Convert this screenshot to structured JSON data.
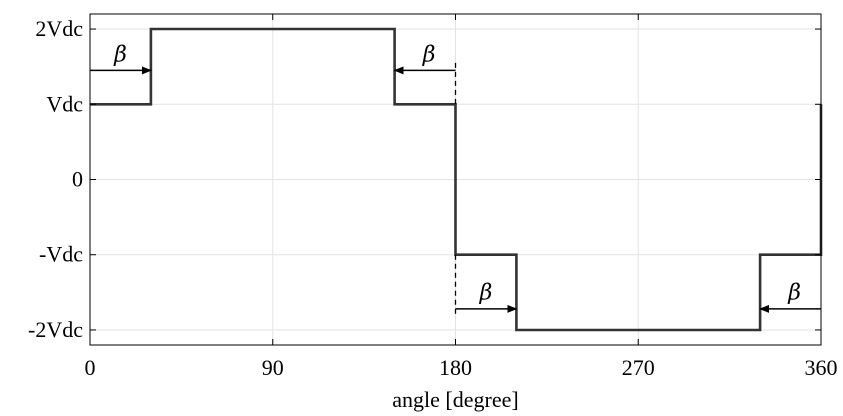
{
  "chart_data": {
    "type": "line",
    "title": "",
    "xlabel": "angle [degree]",
    "ylabel": "",
    "xlim": [
      0,
      360
    ],
    "ylim": [
      -2.2,
      2.2
    ],
    "grid": true,
    "x_ticks": [
      0,
      90,
      180,
      270,
      360
    ],
    "x_tick_labels": [
      "0",
      "90",
      "180",
      "270",
      "360"
    ],
    "y_ticks": [
      2,
      1,
      0,
      -1,
      -2
    ],
    "y_tick_labels": [
      "2Vdc",
      "Vdc",
      "0",
      "-Vdc",
      "-2Vdc"
    ],
    "series": [
      {
        "type": "step",
        "x": [
          0,
          30,
          30,
          150,
          150,
          180,
          180,
          210,
          210,
          330,
          330,
          360,
          360
        ],
        "y": [
          1,
          1,
          2,
          2,
          1,
          1,
          -1,
          -1,
          -2,
          -2,
          -1,
          -1,
          1
        ]
      }
    ],
    "annotations": [
      {
        "label": "β",
        "arrow_from_x": 0,
        "arrow_to_x": 30,
        "arrow_y": 1.45,
        "label_x": 15,
        "label_y": 1.66
      },
      {
        "label": "β",
        "arrow_from_x": 180,
        "arrow_to_x": 150,
        "arrow_y": 1.45,
        "label_x": 167,
        "label_y": 1.66
      },
      {
        "label": "β",
        "arrow_from_x": 180,
        "arrow_to_x": 210,
        "arrow_y": -1.72,
        "label_x": 195,
        "label_y": -1.5
      },
      {
        "label": "β",
        "arrow_from_x": 360,
        "arrow_to_x": 330,
        "arrow_y": -1.72,
        "label_x": 347,
        "label_y": -1.5
      }
    ],
    "reference_lines": [
      {
        "x": 180,
        "y_from": 1.55,
        "y_to": 1
      },
      {
        "x": 180,
        "y_from": -1,
        "y_to": -1.8
      }
    ]
  }
}
